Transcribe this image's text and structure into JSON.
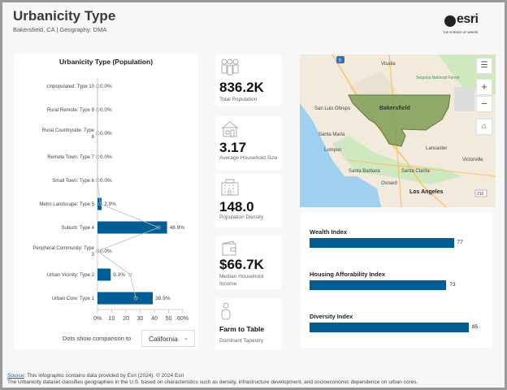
{
  "header": {
    "title": "Urbanicity Type",
    "subtitle": "Bakersfield, CA | Geography: DMA",
    "logo_word": "esri",
    "logo_tagline": "THE SCIENCE OF WHERE"
  },
  "chart_data": {
    "type": "bar",
    "orientation": "horizontal",
    "title": "Urbanicity Type (Population)",
    "categories": [
      "Unpopulated: Type 10",
      "Rural Remote: Type 9",
      "Rural Countryside: Type 8",
      "Remote Town: Type 7",
      "Small Town: Type 6",
      "Metro Landscape: Type 5",
      "Suburb: Type 4",
      "Peripheral Community: Type 3",
      "Urban Vicinity: Type 2",
      "Urban Core: Type 1"
    ],
    "series": [
      {
        "name": "Bakersfield, CA",
        "values": [
          0.0,
          0.0,
          0.0,
          0.0,
          0.0,
          2.9,
          48.9,
          0.0,
          9.3,
          38.9
        ]
      },
      {
        "name": "California (comparison dots)",
        "values": [
          0,
          0,
          0,
          0,
          0,
          2,
          43,
          0,
          23,
          27
        ]
      }
    ],
    "data_labels": [
      "0.0%",
      "0.0%",
      "0.0%",
      "0.0%",
      "0.0%",
      "2.9%",
      "48.9%",
      "0.0%",
      "9.3%",
      "38.9%"
    ],
    "xlim": [
      0,
      60
    ],
    "xticks": [
      "0%",
      "10",
      "20",
      "30",
      "40",
      "50",
      "60%"
    ],
    "bar_color": "#005e95"
  },
  "comparison": {
    "label": "Dots show comparison to",
    "selected": "California"
  },
  "stats": [
    {
      "icon": "people-icon",
      "value": "836.2K",
      "label": "Total Population"
    },
    {
      "icon": "house-icon",
      "value": "3.17",
      "label": "Average Household Size"
    },
    {
      "icon": "building-icon",
      "value": "148.0",
      "label": "Population Density"
    },
    {
      "icon": "wallet-icon",
      "value": "$66.7K",
      "label": "Median Household Income"
    },
    {
      "icon": "person-icon",
      "value": "Farm to Table",
      "label": "Dominant Tapestry"
    }
  ],
  "map": {
    "labels": [
      "Visalia",
      "Sequoia National Forest",
      "Bakersfield",
      "San Luis Obispo",
      "Santa Maria",
      "Lompoc",
      "Lancaster",
      "Victorville",
      "Santa Barbara",
      "Santa Clarita",
      "Oxnard",
      "Los Angeles",
      "Death Valley National Park"
    ],
    "highway_shields": [
      "5",
      "210"
    ],
    "controls": {
      "zoom_in": "+",
      "zoom_out": "−"
    }
  },
  "indexes": [
    {
      "label": "Wealth Index",
      "value": 77
    },
    {
      "label": "Housing Afforability Index",
      "value": 73
    },
    {
      "label": "Diversity Index",
      "value": 85
    }
  ],
  "footer": {
    "source_link": "Source",
    "source_text": ": This infographic contains data provided by Esri (2024). © 2024 Esri",
    "note": "The Urbanicity dataset classifies geographies in the U.S. based on characteristics such as density, infrastructure development, and socioeconomic dependence on urban cores."
  }
}
